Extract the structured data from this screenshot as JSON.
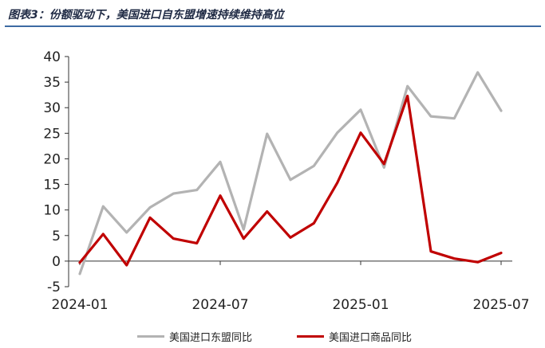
{
  "title": "图表3：份额驱动下，美国进口自东盟增速持续维持高位",
  "chart_data": {
    "type": "line",
    "x": [
      "2024-01",
      "2024-02",
      "2024-03",
      "2024-04",
      "2024-05",
      "2024-06",
      "2024-07",
      "2024-08",
      "2024-09",
      "2024-10",
      "2024-11",
      "2024-12",
      "2025-01",
      "2025-02",
      "2025-03",
      "2025-04",
      "2025-05",
      "2025-06",
      "2025-07"
    ],
    "xticks": [
      "2024-01",
      "2024-07",
      "2025-01",
      "2025-07"
    ],
    "ylim": [
      -5,
      40
    ],
    "yticks": [
      -5,
      0,
      5,
      10,
      15,
      20,
      25,
      30,
      35,
      40
    ],
    "grid": false,
    "legend_position": "bottom",
    "series": [
      {
        "name": "美国进口东盟同比",
        "color": "#b3b3b3",
        "values": [
          -2.5,
          10.7,
          5.6,
          10.5,
          13.2,
          13.9,
          19.4,
          6.2,
          24.9,
          15.9,
          18.6,
          25.1,
          29.6,
          18.3,
          34.2,
          28.3,
          27.9,
          36.9,
          29.4
        ]
      },
      {
        "name": "美国进口商品同比",
        "color": "#c00000",
        "values": [
          -0.3,
          5.3,
          -0.8,
          8.5,
          4.4,
          3.5,
          12.8,
          4.4,
          9.7,
          4.6,
          7.4,
          15.3,
          25.1,
          19.0,
          32.3,
          1.9,
          0.5,
          -0.2,
          1.6
        ]
      }
    ]
  }
}
